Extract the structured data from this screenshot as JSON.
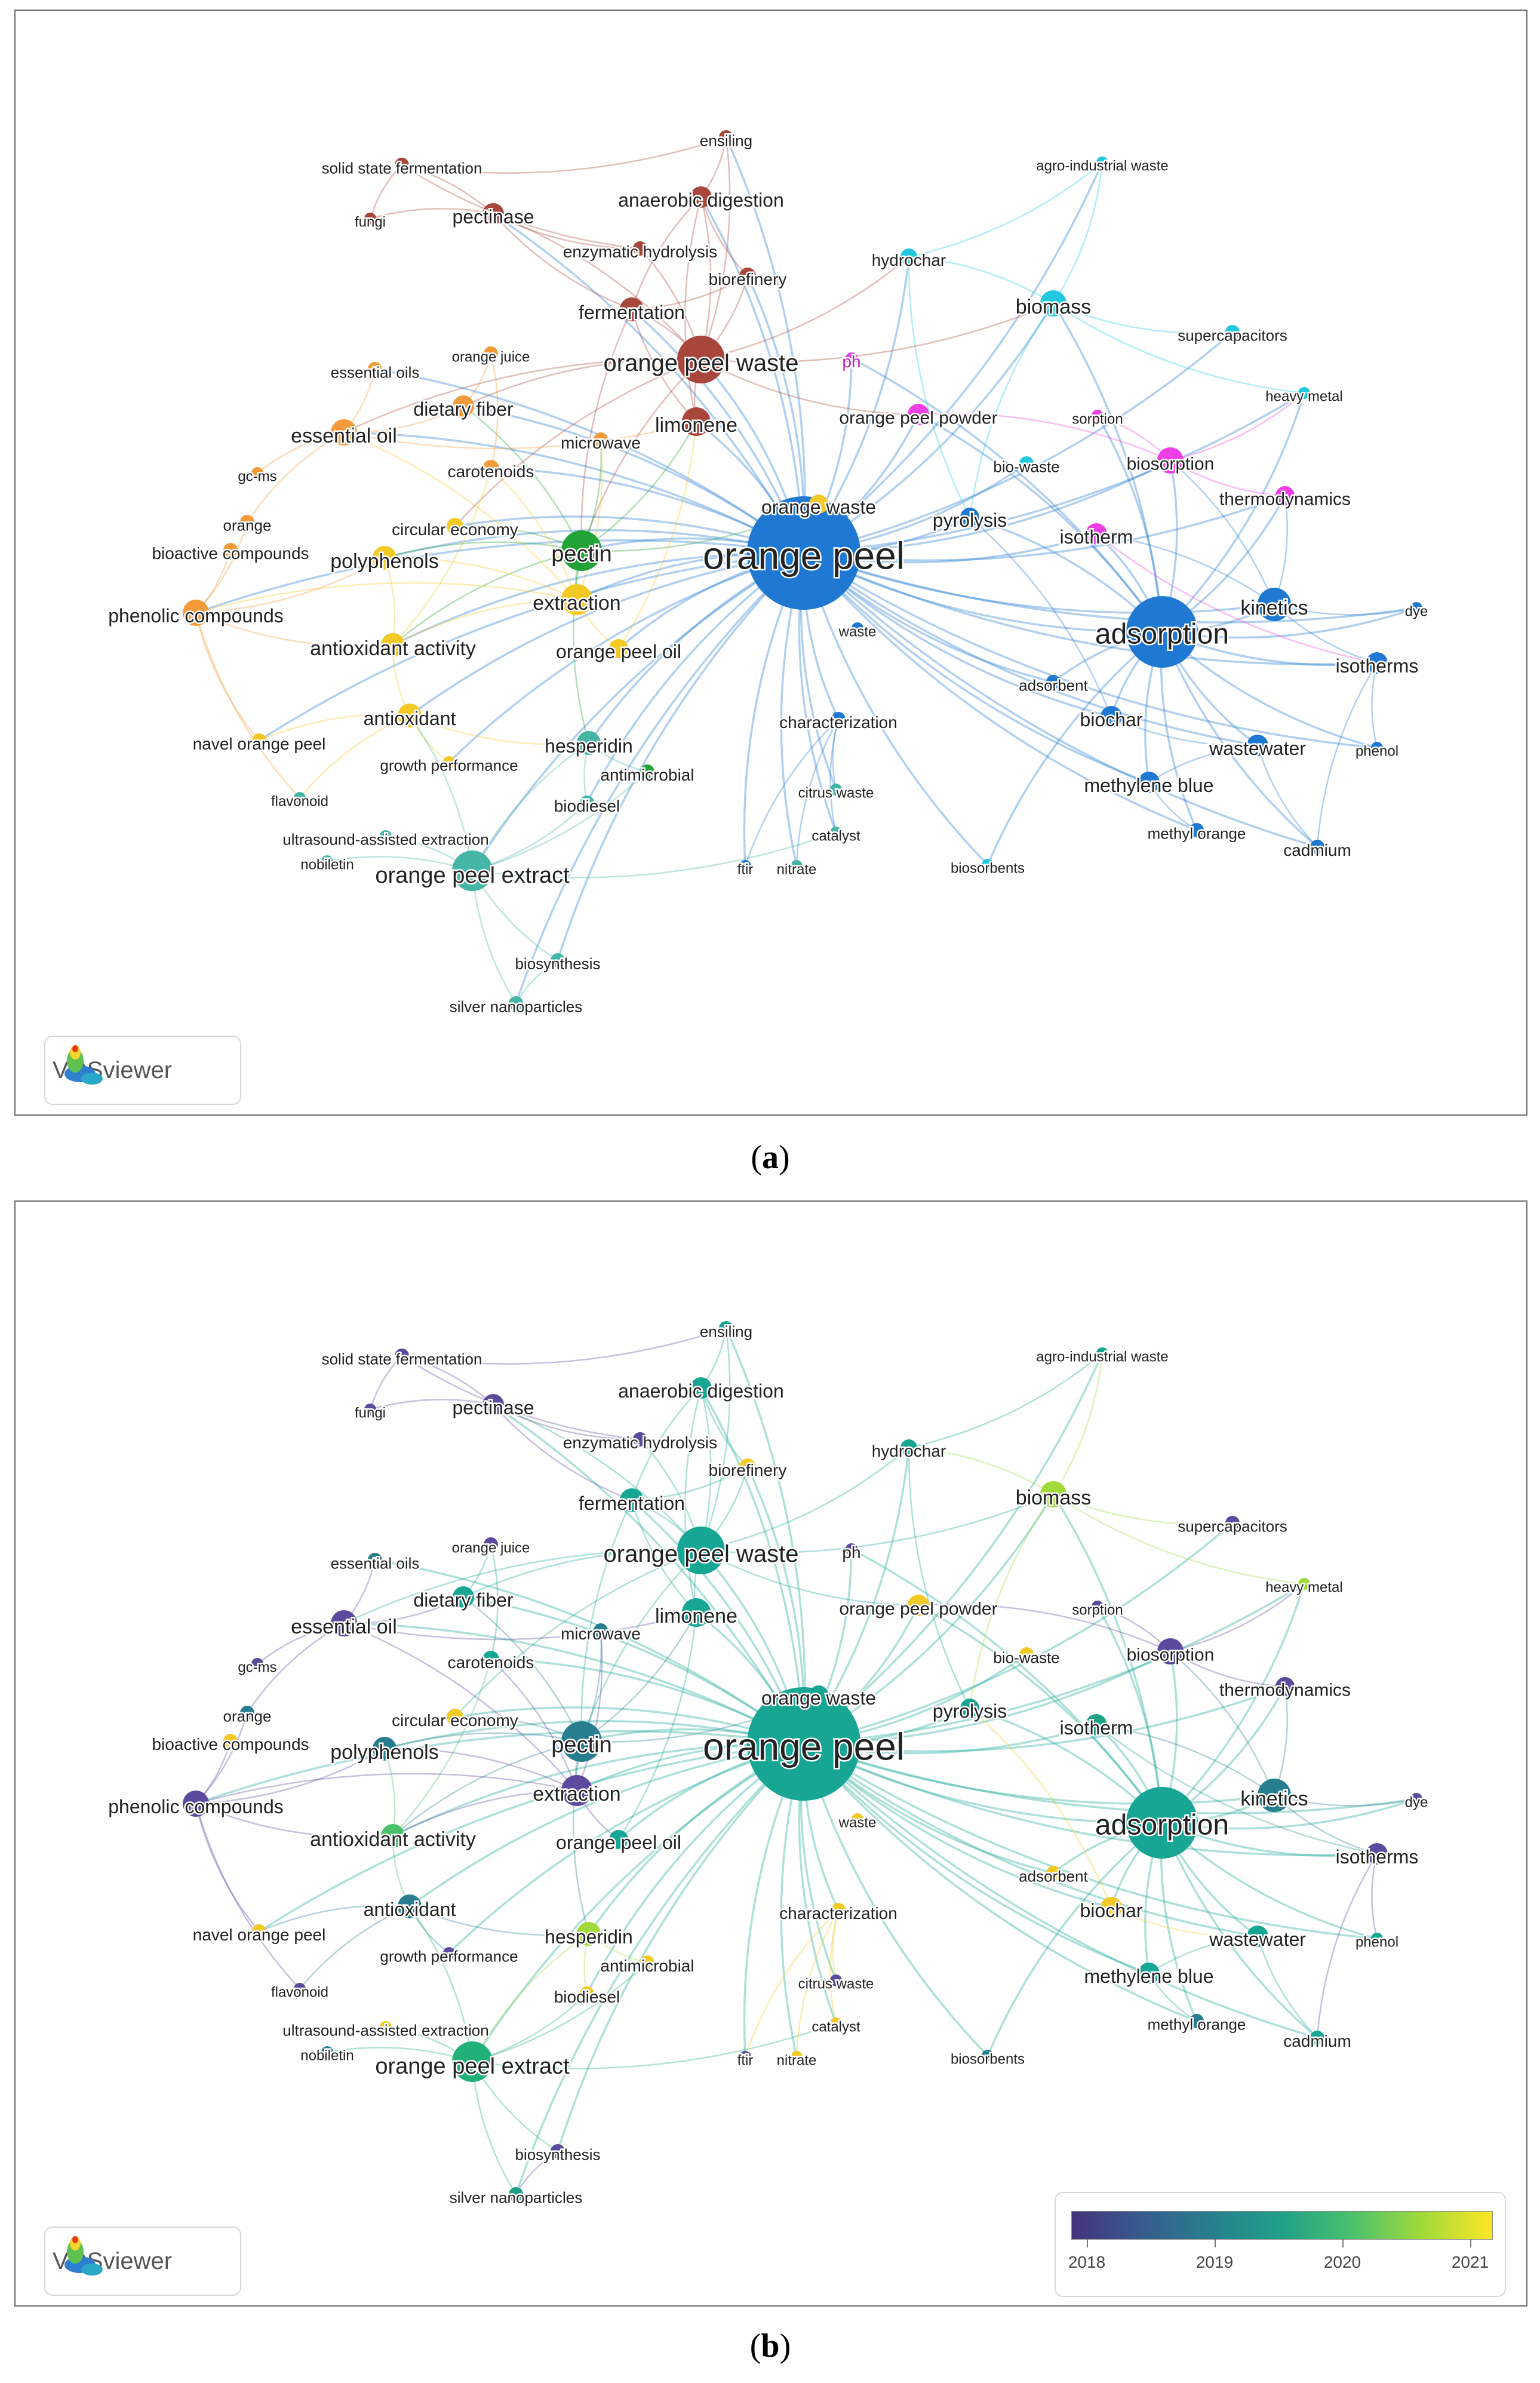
{
  "panels": [
    {
      "label": "a",
      "mode": "cluster"
    },
    {
      "label": "b",
      "mode": "overlay"
    }
  ],
  "badge": {
    "name": "VOSviewer"
  },
  "legend": {
    "ticks": [
      "2018",
      "2019",
      "2020",
      "2021"
    ],
    "gradient": [
      "#46327e",
      "#365c8d",
      "#277f8e",
      "#1fa187",
      "#4ac16d",
      "#a0da39",
      "#fde725"
    ]
  },
  "colors": {
    "cluster_red": "#b5554a",
    "cluster_orange": "#f39a3a",
    "cluster_yellow": "#f3c925",
    "cluster_green": "#22a336",
    "cluster_teal": "#45b5a6",
    "cluster_blue": "#1f78d1",
    "cluster_cyan": "#22c8e0",
    "cluster_magenta": "#ee3fe6"
  },
  "nodes": [
    {
      "label": "orange peel",
      "size": 95,
      "fs": 64,
      "ca": "#1f78d1",
      "cb": "#17a594"
    },
    {
      "label": "adsorption",
      "size": 60,
      "fs": 48,
      "ca": "#1f78d1",
      "cb": "#17a594"
    },
    {
      "label": "orange peel waste",
      "size": 40,
      "fs": 40,
      "ca": "#a8463c",
      "cb": "#17a594"
    },
    {
      "label": "pectin",
      "size": 34,
      "fs": 38,
      "ca": "#22a336",
      "cb": "#287d8e"
    },
    {
      "label": "orange peel extract",
      "size": 34,
      "fs": 38,
      "ca": "#45b5a6",
      "cb": "#22b07a"
    },
    {
      "label": "extraction",
      "size": 26,
      "fs": 34,
      "ca": "#f3c925",
      "cb": "#5c4a9e"
    },
    {
      "label": "limonene",
      "size": 24,
      "fs": 34,
      "ca": "#a8463c",
      "cb": "#17a594"
    },
    {
      "label": "kinetics",
      "size": 28,
      "fs": 34,
      "ca": "#1f78d1",
      "cb": "#287d8e"
    },
    {
      "label": "biomass",
      "size": 22,
      "fs": 34,
      "ca": "#22c8e0",
      "cb": "#a0da39"
    },
    {
      "label": "biosorption",
      "size": 22,
      "fs": 30,
      "ca": "#ee3fe6",
      "cb": "#5c4a9e"
    },
    {
      "label": "essential oil",
      "size": 22,
      "fs": 34,
      "ca": "#f39a3a",
      "cb": "#5c4a9e"
    },
    {
      "label": "phenolic compounds",
      "size": 22,
      "fs": 32,
      "ca": "#f39a3a",
      "cb": "#5c4a9e"
    },
    {
      "label": "antioxidant activity",
      "size": 20,
      "fs": 34,
      "ca": "#f3c925",
      "cb": "#4ac16d"
    },
    {
      "label": "polyphenols",
      "size": 20,
      "fs": 34,
      "ca": "#f3c925",
      "cb": "#287d8e"
    },
    {
      "label": "antioxidant",
      "size": 20,
      "fs": 32,
      "ca": "#f3c925",
      "cb": "#287d8e"
    },
    {
      "label": "hesperidin",
      "size": 20,
      "fs": 32,
      "ca": "#45b5a6",
      "cb": "#a0da39"
    },
    {
      "label": "anaerobic digestion",
      "size": 18,
      "fs": 32,
      "ca": "#a8463c",
      "cb": "#17a594"
    },
    {
      "label": "fermentation",
      "size": 20,
      "fs": 32,
      "ca": "#a8463c",
      "cb": "#17a594"
    },
    {
      "label": "pectinase",
      "size": 18,
      "fs": 32,
      "ca": "#a8463c",
      "cb": "#5c4a9e"
    },
    {
      "label": "dietary fiber",
      "size": 18,
      "fs": 32,
      "ca": "#f39a3a",
      "cb": "#17a594"
    },
    {
      "label": "orange waste",
      "size": 16,
      "fs": 32,
      "ca": "#f3c925",
      "cb": "#17a594"
    },
    {
      "label": "isotherm",
      "size": 18,
      "fs": 32,
      "ca": "#ee3fe6",
      "cb": "#1fa187"
    },
    {
      "label": "isotherms",
      "size": 18,
      "fs": 32,
      "ca": "#1f78d1",
      "cb": "#5c4a9e"
    },
    {
      "label": "thermodynamics",
      "size": 16,
      "fs": 30,
      "ca": "#ee3fe6",
      "cb": "#5c4a9e"
    },
    {
      "label": "orange peel powder",
      "size": 18,
      "fs": 30,
      "ca": "#ee3fe6",
      "cb": "#f3c925"
    },
    {
      "label": "pyrolysis",
      "size": 16,
      "fs": 32,
      "ca": "#1f78d1",
      "cb": "#17a594"
    },
    {
      "label": "biochar",
      "size": 18,
      "fs": 32,
      "ca": "#1f78d1",
      "cb": "#f3c925"
    },
    {
      "label": "wastewater",
      "size": 18,
      "fs": 32,
      "ca": "#1f78d1",
      "cb": "#17a594"
    },
    {
      "label": "methylene blue",
      "size": 18,
      "fs": 32,
      "ca": "#1f78d1",
      "cb": "#17a594"
    },
    {
      "label": "orange peel oil",
      "size": 16,
      "fs": 32,
      "ca": "#f3c925",
      "cb": "#17a594"
    },
    {
      "label": "circular economy",
      "size": 14,
      "fs": 28,
      "ca": "#f3c925",
      "cb": "#f3c925"
    },
    {
      "label": "carotenoids",
      "size": 14,
      "fs": 28,
      "ca": "#f39a3a",
      "cb": "#17a594"
    },
    {
      "label": "hydrochar",
      "size": 14,
      "fs": 28,
      "ca": "#22c8e0",
      "cb": "#17a594"
    },
    {
      "label": "supercapacitors",
      "size": 12,
      "fs": 26,
      "ca": "#22c8e0",
      "cb": "#5c4a9e"
    },
    {
      "label": "heavy metal",
      "size": 10,
      "fs": 24,
      "ca": "#22c8e0",
      "cb": "#a0da39"
    },
    {
      "label": "agro-industrial waste",
      "size": 10,
      "fs": 24,
      "ca": "#22c8e0",
      "cb": "#17a594"
    },
    {
      "label": "biorefinery",
      "size": 14,
      "fs": 28,
      "ca": "#a8463c",
      "cb": "#f3c925"
    },
    {
      "label": "enzymatic hydrolysis",
      "size": 12,
      "fs": 28,
      "ca": "#a8463c",
      "cb": "#5c4a9e"
    },
    {
      "label": "solid state fermentation",
      "size": 12,
      "fs": 26,
      "ca": "#a8463c",
      "cb": "#5c4a9e"
    },
    {
      "label": "ensiling",
      "size": 12,
      "fs": 26,
      "ca": "#a8463c",
      "cb": "#17a594"
    },
    {
      "label": "fungi",
      "size": 10,
      "fs": 24,
      "ca": "#a8463c",
      "cb": "#5c4a9e"
    },
    {
      "label": "essential oils",
      "size": 12,
      "fs": 26,
      "ca": "#f39a3a",
      "cb": "#287d8e"
    },
    {
      "label": "orange juice",
      "size": 12,
      "fs": 24,
      "ca": "#f39a3a",
      "cb": "#5c4a9e"
    },
    {
      "label": "microwave",
      "size": 12,
      "fs": 28,
      "ca": "#f39a3a",
      "cb": "#287d8e"
    },
    {
      "label": "ph",
      "size": 10,
      "fs": 28,
      "ca": "#ee3fe6",
      "cb": "#5c4a9e"
    },
    {
      "label": "sorption",
      "size": 10,
      "fs": 24,
      "ca": "#ee3fe6",
      "cb": "#5c4a9e"
    },
    {
      "label": "bio-waste",
      "size": 12,
      "fs": 26,
      "ca": "#22c8e0",
      "cb": "#f3c925"
    },
    {
      "label": "gc-ms",
      "size": 10,
      "fs": 24,
      "ca": "#f39a3a",
      "cb": "#5c4a9e"
    },
    {
      "label": "orange",
      "size": 12,
      "fs": 26,
      "ca": "#f39a3a",
      "cb": "#287d8e"
    },
    {
      "label": "bioactive compounds",
      "size": 12,
      "fs": 28,
      "ca": "#f39a3a",
      "cb": "#f3c925"
    },
    {
      "label": "navel orange peel",
      "size": 12,
      "fs": 28,
      "ca": "#f3c925",
      "cb": "#f3c925"
    },
    {
      "label": "growth performance",
      "size": 10,
      "fs": 26,
      "ca": "#f3c925",
      "cb": "#5c4a9e"
    },
    {
      "label": "flavonoid",
      "size": 10,
      "fs": 24,
      "ca": "#45b5a6",
      "cb": "#5c4a9e"
    },
    {
      "label": "ultrasound-assisted extraction",
      "size": 10,
      "fs": 26,
      "ca": "#45b5a6",
      "cb": "#f3c925"
    },
    {
      "label": "nobiletin",
      "size": 10,
      "fs": 24,
      "ca": "#45b5a6",
      "cb": "#287d8e"
    },
    {
      "label": "biodiesel",
      "size": 12,
      "fs": 28,
      "ca": "#45b5a6",
      "cb": "#f3c925"
    },
    {
      "label": "antimicrobial",
      "size": 12,
      "fs": 28,
      "ca": "#22a336",
      "cb": "#f3c925"
    },
    {
      "label": "characterization",
      "size": 12,
      "fs": 28,
      "ca": "#1f78d1",
      "cb": "#f3c925"
    },
    {
      "label": "waste",
      "size": 10,
      "fs": 24,
      "ca": "#1f78d1",
      "cb": "#f3c925"
    },
    {
      "label": "adsorbent",
      "size": 12,
      "fs": 26,
      "ca": "#1f78d1",
      "cb": "#f3c925"
    },
    {
      "label": "citrus waste",
      "size": 10,
      "fs": 24,
      "ca": "#45b5a6",
      "cb": "#5c4a9e"
    },
    {
      "label": "catalyst",
      "size": 10,
      "fs": 24,
      "ca": "#45b5a6",
      "cb": "#f3c925"
    },
    {
      "label": "ftir",
      "size": 10,
      "fs": 24,
      "ca": "#1f78d1",
      "cb": "#5c4a9e"
    },
    {
      "label": "nitrate",
      "size": 10,
      "fs": 24,
      "ca": "#45b5a6",
      "cb": "#f3c925"
    },
    {
      "label": "biosorbents",
      "size": 10,
      "fs": 24,
      "ca": "#22c8e0",
      "cb": "#287d8e"
    },
    {
      "label": "biosynthesis",
      "size": 12,
      "fs": 26,
      "ca": "#45b5a6",
      "cb": "#5c4a9e"
    },
    {
      "label": "silver nanoparticles",
      "size": 12,
      "fs": 26,
      "ca": "#45b5a6",
      "cb": "#1fa187"
    },
    {
      "label": "methyl orange",
      "size": 12,
      "fs": 26,
      "ca": "#1f78d1",
      "cb": "#287d8e"
    },
    {
      "label": "cadmium",
      "size": 12,
      "fs": 28,
      "ca": "#1f78d1",
      "cb": "#17a594"
    },
    {
      "label": "phenol",
      "size": 10,
      "fs": 24,
      "ca": "#1f78d1",
      "cb": "#17a594"
    },
    {
      "label": "dye",
      "size": 10,
      "fs": 24,
      "ca": "#1f78d1",
      "cb": "#5c4a9e"
    }
  ],
  "edges": [
    [
      "orange peel",
      "adsorption"
    ],
    [
      "orange peel",
      "orange peel waste"
    ],
    [
      "orange peel",
      "pectin"
    ],
    [
      "orange peel",
      "orange peel extract"
    ],
    [
      "orange peel",
      "extraction"
    ],
    [
      "orange peel",
      "limonene"
    ],
    [
      "orange peel",
      "kinetics"
    ],
    [
      "orange peel",
      "biomass"
    ],
    [
      "orange peel",
      "biosorption"
    ],
    [
      "orange peel",
      "essential oil"
    ],
    [
      "orange peel",
      "phenolic compounds"
    ],
    [
      "orange peel",
      "antioxidant activity"
    ],
    [
      "orange peel",
      "polyphenols"
    ],
    [
      "orange peel",
      "antioxidant"
    ],
    [
      "orange peel",
      "hesperidin"
    ],
    [
      "orange peel",
      "anaerobic digestion"
    ],
    [
      "orange peel",
      "fermentation"
    ],
    [
      "orange peel",
      "pectinase"
    ],
    [
      "orange peel",
      "dietary fiber"
    ],
    [
      "orange peel",
      "orange waste"
    ],
    [
      "orange peel",
      "isotherm"
    ],
    [
      "orange peel",
      "isotherms"
    ],
    [
      "orange peel",
      "thermodynamics"
    ],
    [
      "orange peel",
      "orange peel powder"
    ],
    [
      "orange peel",
      "pyrolysis"
    ],
    [
      "orange peel",
      "biochar"
    ],
    [
      "orange peel",
      "wastewater"
    ],
    [
      "orange peel",
      "methylene blue"
    ],
    [
      "orange peel",
      "orange peel oil"
    ],
    [
      "orange peel",
      "hydrochar"
    ],
    [
      "orange peel",
      "characterization"
    ],
    [
      "orange peel",
      "biodiesel"
    ],
    [
      "orange peel",
      "methyl orange"
    ],
    [
      "orange peel",
      "cadmium"
    ],
    [
      "orange peel",
      "silver nanoparticles"
    ],
    [
      "orange peel",
      "biosynthesis"
    ],
    [
      "orange peel",
      "heavy metal"
    ],
    [
      "orange peel",
      "supercapacitors"
    ],
    [
      "orange peel",
      "circular economy"
    ],
    [
      "orange peel",
      "carotenoids"
    ],
    [
      "orange peel",
      "biorefinery"
    ],
    [
      "orange peel",
      "navel orange peel"
    ],
    [
      "orange peel",
      "ph"
    ],
    [
      "orange peel",
      "bio-waste"
    ],
    [
      "orange peel",
      "adsorbent"
    ],
    [
      "orange peel",
      "dye"
    ],
    [
      "orange peel",
      "phenol"
    ],
    [
      "orange peel",
      "citrus waste"
    ],
    [
      "orange peel",
      "catalyst"
    ],
    [
      "orange peel",
      "nitrate"
    ],
    [
      "orange peel",
      "ftir"
    ],
    [
      "orange peel",
      "biosorbents"
    ],
    [
      "orange peel",
      "agro-industrial waste"
    ],
    [
      "orange peel",
      "essential oils"
    ],
    [
      "orange peel",
      "ensiling"
    ],
    [
      "orange peel",
      "growth performance"
    ],
    [
      "adsorption",
      "kinetics"
    ],
    [
      "adsorption",
      "isotherms"
    ],
    [
      "adsorption",
      "isotherm"
    ],
    [
      "adsorption",
      "thermodynamics"
    ],
    [
      "adsorption",
      "biosorption"
    ],
    [
      "adsorption",
      "methylene blue"
    ],
    [
      "adsorption",
      "wastewater"
    ],
    [
      "adsorption",
      "biochar"
    ],
    [
      "adsorption",
      "cadmium"
    ],
    [
      "adsorption",
      "phenol"
    ],
    [
      "adsorption",
      "dye"
    ],
    [
      "adsorption",
      "methyl orange"
    ],
    [
      "adsorption",
      "adsorbent"
    ],
    [
      "adsorption",
      "pyrolysis"
    ],
    [
      "adsorption",
      "heavy metal"
    ],
    [
      "adsorption",
      "biosorbents"
    ],
    [
      "adsorption",
      "orange peel powder"
    ],
    [
      "adsorption",
      "sorption"
    ],
    [
      "adsorption",
      "biomass"
    ],
    [
      "adsorption",
      "ph"
    ],
    [
      "kinetics",
      "isotherms"
    ],
    [
      "kinetics",
      "thermodynamics"
    ],
    [
      "kinetics",
      "dye"
    ],
    [
      "kinetics",
      "biosorption"
    ],
    [
      "kinetics",
      "isotherm"
    ],
    [
      "biosorption",
      "thermodynamics"
    ],
    [
      "biosorption",
      "heavy metal"
    ],
    [
      "biosorption",
      "sorption"
    ],
    [
      "biosorption",
      "orange peel powder"
    ],
    [
      "biomass",
      "hydrochar"
    ],
    [
      "biomass",
      "supercapacitors"
    ],
    [
      "biomass",
      "pyrolysis"
    ],
    [
      "biomass",
      "agro-industrial waste"
    ],
    [
      "biomass",
      "heavy metal"
    ],
    [
      "hydrochar",
      "agro-industrial waste"
    ],
    [
      "hydrochar",
      "pyrolysis"
    ],
    [
      "wastewater",
      "methylene blue"
    ],
    [
      "wastewater",
      "cadmium"
    ],
    [
      "methylene blue",
      "methyl orange"
    ],
    [
      "biochar",
      "pyrolysis"
    ],
    [
      "biochar",
      "wastewater"
    ],
    [
      "orange peel waste",
      "limonene"
    ],
    [
      "orange peel waste",
      "anaerobic digestion"
    ],
    [
      "orange peel waste",
      "fermentation"
    ],
    [
      "orange peel waste",
      "biorefinery"
    ],
    [
      "orange peel waste",
      "pectin"
    ],
    [
      "orange peel waste",
      "ensiling"
    ],
    [
      "orange peel waste",
      "enzymatic hydrolysis"
    ],
    [
      "orange peel waste",
      "pectinase"
    ],
    [
      "orange peel waste",
      "essential oil"
    ],
    [
      "orange peel waste",
      "biomass"
    ],
    [
      "orange peel waste",
      "hydrochar"
    ],
    [
      "orange peel waste",
      "orange peel powder"
    ],
    [
      "orange peel waste",
      "circular economy"
    ],
    [
      "orange peel waste",
      "dietary fiber"
    ],
    [
      "anaerobic digestion",
      "limonene"
    ],
    [
      "anaerobic digestion",
      "ensiling"
    ],
    [
      "anaerobic digestion",
      "fermentation"
    ],
    [
      "anaerobic digestion",
      "biorefinery"
    ],
    [
      "pectinase",
      "solid state fermentation"
    ],
    [
      "pectinase",
      "fungi"
    ],
    [
      "pectinase",
      "enzymatic hydrolysis"
    ],
    [
      "pectinase",
      "fermentation"
    ],
    [
      "solid state fermentation",
      "fungi"
    ],
    [
      "solid state fermentation",
      "enzymatic hydrolysis"
    ],
    [
      "solid state fermentation",
      "ensiling"
    ],
    [
      "fermentation",
      "limonene"
    ],
    [
      "fermentation",
      "biorefinery"
    ],
    [
      "fermentation",
      "pectin"
    ],
    [
      "pectin",
      "extraction"
    ],
    [
      "pectin",
      "polyphenols"
    ],
    [
      "pectin",
      "microwave"
    ],
    [
      "pectin",
      "dietary fiber"
    ],
    [
      "pectin",
      "antioxidant activity"
    ],
    [
      "pectin",
      "circular economy"
    ],
    [
      "pectin",
      "limonene"
    ],
    [
      "pectin",
      "orange waste"
    ],
    [
      "pectin",
      "hesperidin"
    ],
    [
      "extraction",
      "polyphenols"
    ],
    [
      "extraction",
      "antioxidant activity"
    ],
    [
      "extraction",
      "phenolic compounds"
    ],
    [
      "extraction",
      "essential oil"
    ],
    [
      "extraction",
      "microwave"
    ],
    [
      "extraction",
      "carotenoids"
    ],
    [
      "extraction",
      "orange peel oil"
    ],
    [
      "essential oil",
      "essential oils"
    ],
    [
      "essential oil",
      "gc-ms"
    ],
    [
      "essential oil",
      "orange"
    ],
    [
      "essential oil",
      "dietary fiber"
    ],
    [
      "essential oil",
      "limonene"
    ],
    [
      "phenolic compounds",
      "antioxidant activity"
    ],
    [
      "phenolic compounds",
      "bioactive compounds"
    ],
    [
      "phenolic compounds",
      "orange"
    ],
    [
      "phenolic compounds",
      "polyphenols"
    ],
    [
      "phenolic compounds",
      "flavonoid"
    ],
    [
      "phenolic compounds",
      "navel orange peel"
    ],
    [
      "antioxidant activity",
      "polyphenols"
    ],
    [
      "antioxidant activity",
      "antioxidant"
    ],
    [
      "antioxidant activity",
      "carotenoids"
    ],
    [
      "antioxidant",
      "growth performance"
    ],
    [
      "antioxidant",
      "hesperidin"
    ],
    [
      "antioxidant",
      "navel orange peel"
    ],
    [
      "antioxidant",
      "flavonoid"
    ],
    [
      "hesperidin",
      "orange peel extract"
    ],
    [
      "hesperidin",
      "antimicrobial"
    ],
    [
      "hesperidin",
      "biodiesel"
    ],
    [
      "orange peel extract",
      "silver nanoparticles"
    ],
    [
      "orange peel extract",
      "biosynthesis"
    ],
    [
      "orange peel extract",
      "nobiletin"
    ],
    [
      "orange peel extract",
      "ultrasound-assisted extraction"
    ],
    [
      "orange peel extract",
      "antimicrobial"
    ],
    [
      "orange peel extract",
      "antioxidant"
    ],
    [
      "orange peel extract",
      "biodiesel"
    ],
    [
      "orange peel extract",
      "catalyst"
    ],
    [
      "biosynthesis",
      "silver nanoparticles"
    ],
    [
      "characterization",
      "catalyst"
    ],
    [
      "characterization",
      "citrus waste"
    ],
    [
      "characterization",
      "nitrate"
    ],
    [
      "characterization",
      "ftir"
    ],
    [
      "orange peel oil",
      "limonene"
    ],
    [
      "dietary fiber",
      "orange juice"
    ],
    [
      "carotenoids",
      "orange juice"
    ],
    [
      "isotherm",
      "isotherms"
    ],
    [
      "isotherms",
      "phenol"
    ],
    [
      "isotherms",
      "cadmium"
    ]
  ]
}
